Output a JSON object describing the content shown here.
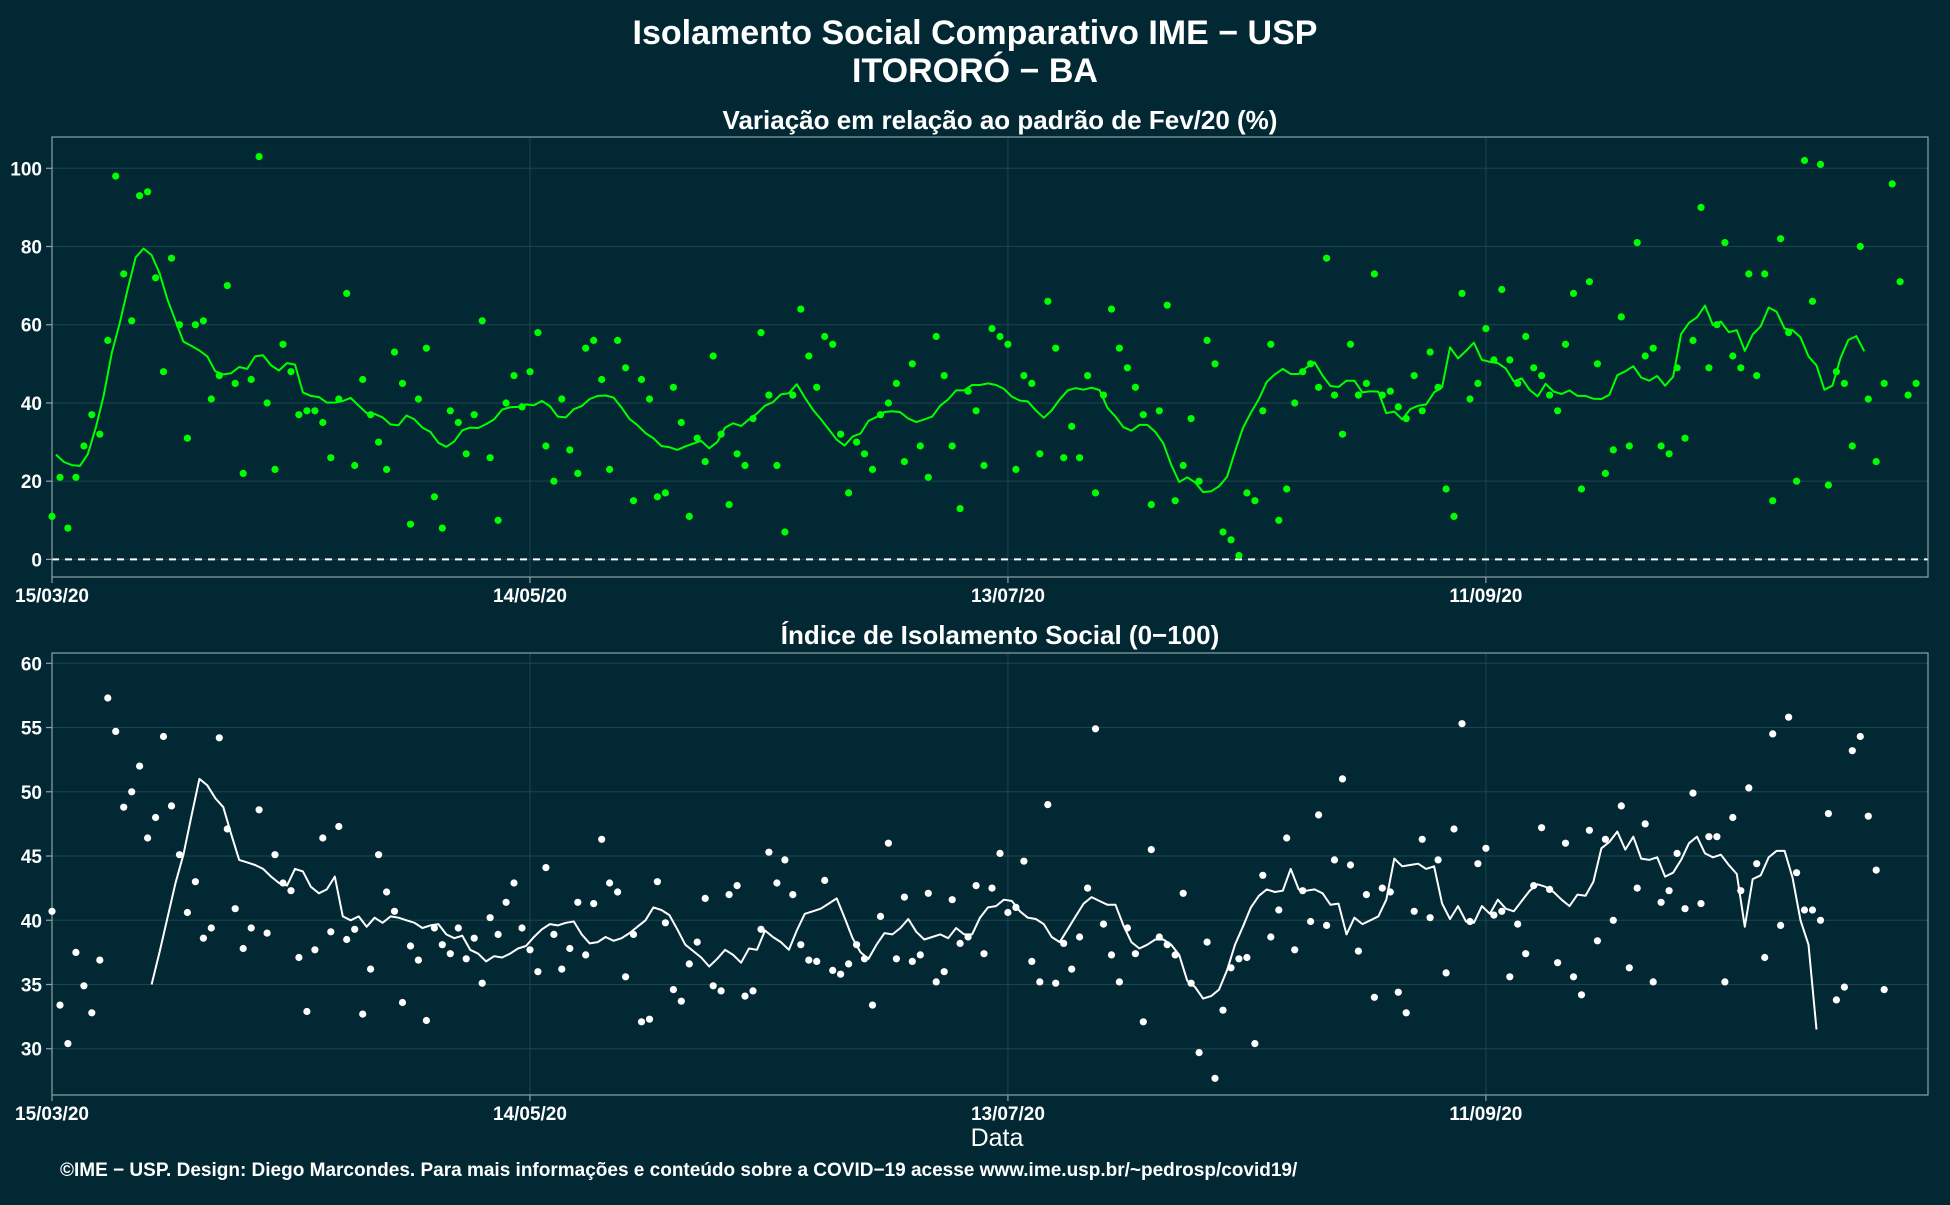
{
  "header": {
    "title": "Isolamento Social Comparativo IME − USP",
    "subtitle": "ITORORÓ − BA"
  },
  "xlabel": "Data",
  "caption": "©IME − USP. Design: Diego Marcondes. Para mais informações e conteúdo sobre a COVID−19 acesse www.ime.usp.br/~pedrosp/covid19/",
  "colors": {
    "background": "#022833",
    "panel_border": "#8fa3a8",
    "grid": "#1d4550",
    "variation_series": "#00ff00",
    "index_series": "#ffffff",
    "text": "#ffffff"
  },
  "chart_data": [
    {
      "type": "scatter",
      "title": "Variação em relação ao padrão de Fev/20 (%)",
      "xlabel": "Data",
      "ylabel": "",
      "x_start_date": "15/03/20",
      "x_ticks": [
        {
          "date": "15/03/20",
          "day": 0
        },
        {
          "date": "14/05/20",
          "day": 60
        },
        {
          "date": "13/07/20",
          "day": 120
        },
        {
          "date": "11/09/20",
          "day": 180
        }
      ],
      "xlim": [
        0,
        235.5
      ],
      "ylim": [
        -4.5,
        108
      ],
      "y_ticks": [
        0,
        20,
        40,
        60,
        80,
        100
      ],
      "reference_line": {
        "y": 0,
        "style": "dashed"
      },
      "grid": true,
      "series": [
        {
          "kind": "points",
          "color": "#00ff00",
          "values": [
            11,
            21,
            8,
            21,
            29,
            37,
            32,
            56,
            98,
            73,
            61,
            93,
            94,
            72,
            48,
            77,
            60,
            31,
            60,
            61,
            41,
            47,
            70,
            45,
            22,
            46,
            103,
            40,
            23,
            55,
            48,
            37,
            38,
            38,
            35,
            26,
            41,
            68,
            24,
            46,
            37,
            30,
            23,
            53,
            45,
            9,
            41,
            54,
            16,
            8,
            38,
            35,
            27,
            37,
            61,
            26,
            10,
            40,
            47,
            39,
            48,
            58,
            29,
            20,
            41,
            28,
            22,
            54,
            56,
            46,
            23,
            56,
            49,
            15,
            46,
            41,
            16,
            17,
            44,
            35,
            11,
            31,
            25,
            52,
            32,
            14,
            27,
            24,
            36,
            58,
            42,
            24,
            7,
            42,
            64,
            52,
            44,
            57,
            55,
            32,
            17,
            30,
            27,
            23,
            37,
            40,
            45,
            25,
            50,
            29,
            21,
            57,
            47,
            29,
            13,
            43,
            38,
            24,
            59,
            57,
            55,
            23,
            47,
            45,
            27,
            66,
            54,
            26,
            34,
            26,
            47,
            17,
            42,
            64,
            54,
            49,
            44,
            37,
            14,
            38,
            65,
            15,
            24,
            36,
            20,
            56,
            50,
            7,
            5,
            1,
            17,
            15,
            38,
            55,
            10,
            18,
            40,
            48,
            50,
            44,
            77,
            42,
            32,
            55,
            42,
            45,
            73,
            42,
            43,
            39,
            36,
            47,
            38,
            53,
            44,
            18,
            11,
            68,
            41,
            45,
            59,
            51,
            69,
            51,
            45,
            57,
            49,
            47,
            42,
            38,
            55,
            68,
            18,
            71,
            50,
            22,
            28,
            62,
            29,
            81,
            52,
            54,
            29,
            27,
            49,
            31,
            56,
            90,
            49,
            60,
            81,
            52,
            49,
            73,
            47,
            73,
            15,
            82,
            58,
            20,
            102,
            66,
            101,
            19,
            48,
            45,
            29,
            80,
            41,
            25,
            45,
            96,
            71,
            42,
            45
          ],
          "start_day": 0
        },
        {
          "kind": "line",
          "name": "",
          "color": "#00ff00",
          "values": [
            26.8,
            24.9,
            24.1,
            23.9,
            26.9,
            33.7,
            42.0,
            52.7,
            60.4,
            69.1,
            77.2,
            79.5,
            77.8,
            73.2,
            66.4,
            61.0,
            55.7,
            54.6,
            53.4,
            51.9,
            48.1,
            47.3,
            47.6,
            49.2,
            48.7,
            51.9,
            52.2,
            49.6,
            48.3,
            50.2,
            49.8,
            42.7,
            41.8,
            41.5,
            40.1,
            40.1,
            40.5,
            41.3,
            39.3,
            37.4,
            37.2,
            36.3,
            34.5,
            34.3,
            36.8,
            35.8,
            33.7,
            32.6,
            29.8,
            28.8,
            30.2,
            33.0,
            33.7,
            33.6,
            34.6,
            35.8,
            38.3,
            38.9,
            39.0,
            39.6,
            39.4,
            40.5,
            39.2,
            36.5,
            36.3,
            38.4,
            39.2,
            41.0,
            41.8,
            41.9,
            41.4,
            38.8,
            35.9,
            34.3,
            32.3,
            31.0,
            29.0,
            28.7,
            28.0,
            28.9,
            29.6,
            30.3,
            28.4,
            30.0,
            33.7,
            34.8,
            34.1,
            35.8,
            37.3,
            39.3,
            40.2,
            42.2,
            42.5,
            44.8,
            41.4,
            38.3,
            35.9,
            33.3,
            30.6,
            29.1,
            31.4,
            32.2,
            35.4,
            36.4,
            37.7,
            37.9,
            37.6,
            36.0,
            35.1,
            35.8,
            36.5,
            39.3,
            40.9,
            43.2,
            43.2,
            44.6,
            44.6,
            45.0,
            44.6,
            43.6,
            41.6,
            40.6,
            40.4,
            38.1,
            36.2,
            38.1,
            40.9,
            43.2,
            43.8,
            43.4,
            43.9,
            43.3,
            38.7,
            36.5,
            33.8,
            32.9,
            34.4,
            34.4,
            32.6,
            29.7,
            24.2,
            19.8,
            21.0,
            19.7,
            17.2,
            17.4,
            18.7,
            21.1,
            27.6,
            33.6,
            37.5,
            41.0,
            45.4,
            47.3,
            48.7,
            47.4,
            47.4,
            49.1,
            50.4,
            47.0,
            44.3,
            44.1,
            45.7,
            45.7,
            42.7,
            43.0,
            42.9,
            37.4,
            37.8,
            35.8,
            38.4,
            39.3,
            39.6,
            42.7,
            44.0,
            54.2,
            51.4,
            53.3,
            55.4,
            51.0,
            50.5,
            50.2,
            48.8,
            45.5,
            46.3,
            43.3,
            41.7,
            44.9,
            42.9,
            42.3,
            43.2,
            41.8,
            41.8,
            41.1,
            41.0,
            42.1,
            47.1,
            48.1,
            49.4,
            46.5,
            45.7,
            46.9,
            44.4,
            46.7,
            57.6,
            60.5,
            61.9,
            64.9,
            59.9,
            60.8,
            58.1,
            58.6,
            53.3,
            57.5,
            59.6,
            64.4,
            63.3,
            59.0,
            58.6,
            56.8,
            51.9,
            49.6,
            43.4,
            44.4,
            51.4,
            56.1,
            57.1,
            53.2
          ],
          "start_day": 0.5
        }
      ]
    },
    {
      "type": "scatter",
      "title": "Índice de Isolamento Social (0−100)",
      "xlabel": "Data",
      "ylabel": "",
      "x_start_date": "15/03/20",
      "x_ticks": [
        {
          "date": "15/03/20",
          "day": 0
        },
        {
          "date": "14/05/20",
          "day": 60
        },
        {
          "date": "13/07/20",
          "day": 120
        },
        {
          "date": "11/09/20",
          "day": 180
        }
      ],
      "xlim": [
        0,
        235.5
      ],
      "ylim": [
        26.4,
        60.8
      ],
      "y_ticks": [
        30,
        35,
        40,
        45,
        50,
        55,
        60
      ],
      "grid": true,
      "series": [
        {
          "kind": "points",
          "color": "#ffffff",
          "values": [
            40.7,
            33.4,
            30.4,
            37.5,
            34.9,
            32.8,
            36.9,
            57.3,
            54.7,
            48.8,
            50.0,
            52.0,
            46.4,
            48.0,
            54.3,
            48.9,
            45.1,
            40.6,
            43.0,
            38.6,
            39.4,
            54.2,
            47.1,
            40.9,
            37.8,
            39.4,
            48.6,
            39.0,
            45.1,
            42.9,
            42.3,
            37.1,
            32.9,
            37.7,
            46.4,
            39.1,
            47.3,
            38.5,
            39.3,
            32.7,
            36.2,
            45.1,
            42.2,
            40.7,
            33.6,
            38.0,
            36.9,
            32.2,
            39.4,
            38.1,
            37.4,
            39.4,
            37.0,
            38.6,
            35.1,
            40.2,
            38.9,
            41.4,
            42.9,
            39.4,
            37.7,
            36.0,
            44.1,
            38.9,
            36.2,
            37.8,
            41.4,
            37.3,
            41.3,
            46.3,
            42.9,
            42.2,
            35.6,
            38.9,
            32.1,
            32.3,
            43.0,
            39.8,
            34.6,
            33.7,
            36.6,
            38.3,
            41.7,
            34.9,
            34.5,
            42.0,
            42.7,
            34.1,
            34.5,
            39.3,
            45.3,
            42.9,
            44.7,
            42.0,
            38.1,
            36.9,
            36.8,
            43.1,
            36.1,
            35.8,
            36.6,
            38.1,
            37.0,
            33.4,
            40.3,
            46.0,
            37.0,
            41.8,
            36.8,
            37.3,
            42.1,
            35.2,
            36.0,
            41.6,
            38.2,
            38.7,
            42.7,
            37.4,
            42.5,
            45.2,
            40.6,
            41.0,
            44.6,
            36.8,
            35.2,
            49.0,
            35.1,
            38.2,
            36.2,
            38.7,
            42.5,
            54.9,
            39.7,
            37.3,
            35.2,
            39.4,
            37.4,
            32.1,
            45.5,
            38.7,
            38.1,
            37.3,
            42.1,
            35.1,
            29.7,
            38.3,
            27.7,
            33.0,
            36.3,
            37.0,
            37.1,
            30.4,
            43.5,
            38.7,
            40.8,
            46.4,
            37.7,
            42.3,
            39.9,
            48.2,
            39.6,
            44.7,
            51.0,
            44.3,
            37.6,
            42.0,
            34.0,
            42.5,
            42.2,
            34.4,
            32.8,
            40.7,
            46.3,
            40.2,
            44.7,
            35.9,
            47.1,
            55.3,
            39.9,
            44.4,
            45.6,
            40.4,
            40.7,
            35.6,
            39.7,
            37.4,
            42.7,
            47.2,
            42.4,
            36.7,
            46.0,
            35.6,
            34.2,
            47.0,
            38.4,
            46.3,
            40.0,
            48.9,
            36.3,
            42.5,
            47.5,
            35.2,
            41.4,
            42.3,
            45.2,
            40.9,
            49.9,
            41.3,
            46.5,
            46.5,
            35.2,
            48.0,
            42.3,
            50.3,
            44.4,
            37.1,
            54.5,
            39.6,
            55.8,
            43.7,
            40.8,
            40.8,
            40.0,
            48.3,
            33.8,
            34.8,
            53.2,
            54.3,
            48.1,
            43.9,
            34.6
          ],
          "start_day": 0
        },
        {
          "kind": "line",
          "name": "",
          "color": "#ffffff",
          "values": [
            35.0,
            37.5,
            40.2,
            42.9,
            45.1,
            48.1,
            51.0,
            50.5,
            49.5,
            48.8,
            46.7,
            44.7,
            44.5,
            44.3,
            44.0,
            43.4,
            42.9,
            42.7,
            44.0,
            43.8,
            42.6,
            42.1,
            42.4,
            43.4,
            40.3,
            40.0,
            40.3,
            39.5,
            40.2,
            39.8,
            40.3,
            40.2,
            40.0,
            39.8,
            39.4,
            39.6,
            39.7,
            38.9,
            38.6,
            38.8,
            37.7,
            37.4,
            36.8,
            37.2,
            37.1,
            37.4,
            37.8,
            38.0,
            38.7,
            39.3,
            39.7,
            39.6,
            39.8,
            39.9,
            38.9,
            38.2,
            38.3,
            38.7,
            38.4,
            38.6,
            39.0,
            39.5,
            40.0,
            41.0,
            40.8,
            40.4,
            39.3,
            38.1,
            37.6,
            37.1,
            36.4,
            37.0,
            37.7,
            37.3,
            36.7,
            37.8,
            37.7,
            39.2,
            38.7,
            38.3,
            37.7,
            39.2,
            40.5,
            40.7,
            40.9,
            41.3,
            41.7,
            40.2,
            38.6,
            37.5,
            37.0,
            38.1,
            39.0,
            38.9,
            39.4,
            40.1,
            39.1,
            38.5,
            38.7,
            38.9,
            38.6,
            39.4,
            38.9,
            38.9,
            40.2,
            41.0,
            41.1,
            41.6,
            41.5,
            40.7,
            40.2,
            40.1,
            39.7,
            38.7,
            38.3,
            39.3,
            40.3,
            41.3,
            41.8,
            41.5,
            41.2,
            41.2,
            39.6,
            38.3,
            37.8,
            38.1,
            38.5,
            38.5,
            38.1,
            37.3,
            35.3,
            34.8,
            33.9,
            34.1,
            34.6,
            36.1,
            38.1,
            39.5,
            41.0,
            41.9,
            42.4,
            42.2,
            42.3,
            44.0,
            42.4,
            42.3,
            42.4,
            42.1,
            41.2,
            41.3,
            38.9,
            40.2,
            39.7,
            40.0,
            40.3,
            41.6,
            44.8,
            44.2,
            44.3,
            44.4,
            44.0,
            44.2,
            41.3,
            40.1,
            41.1,
            39.9,
            39.8,
            41.1,
            40.5,
            41.6,
            40.9,
            40.7,
            41.5,
            42.3,
            42.8,
            42.6,
            42.2,
            41.6,
            41.1,
            42.0,
            41.9,
            43.0,
            45.6,
            46.1,
            46.9,
            45.5,
            46.5,
            44.8,
            44.7,
            44.9,
            43.4,
            43.7,
            44.7,
            46.0,
            46.5,
            45.2,
            44.9,
            45.1,
            44.3,
            43.6,
            39.5,
            43.2,
            43.5,
            44.9,
            45.4,
            45.4,
            43.3,
            40.0,
            38.1,
            31.5
          ],
          "start_day": 12.5
        }
      ]
    }
  ]
}
